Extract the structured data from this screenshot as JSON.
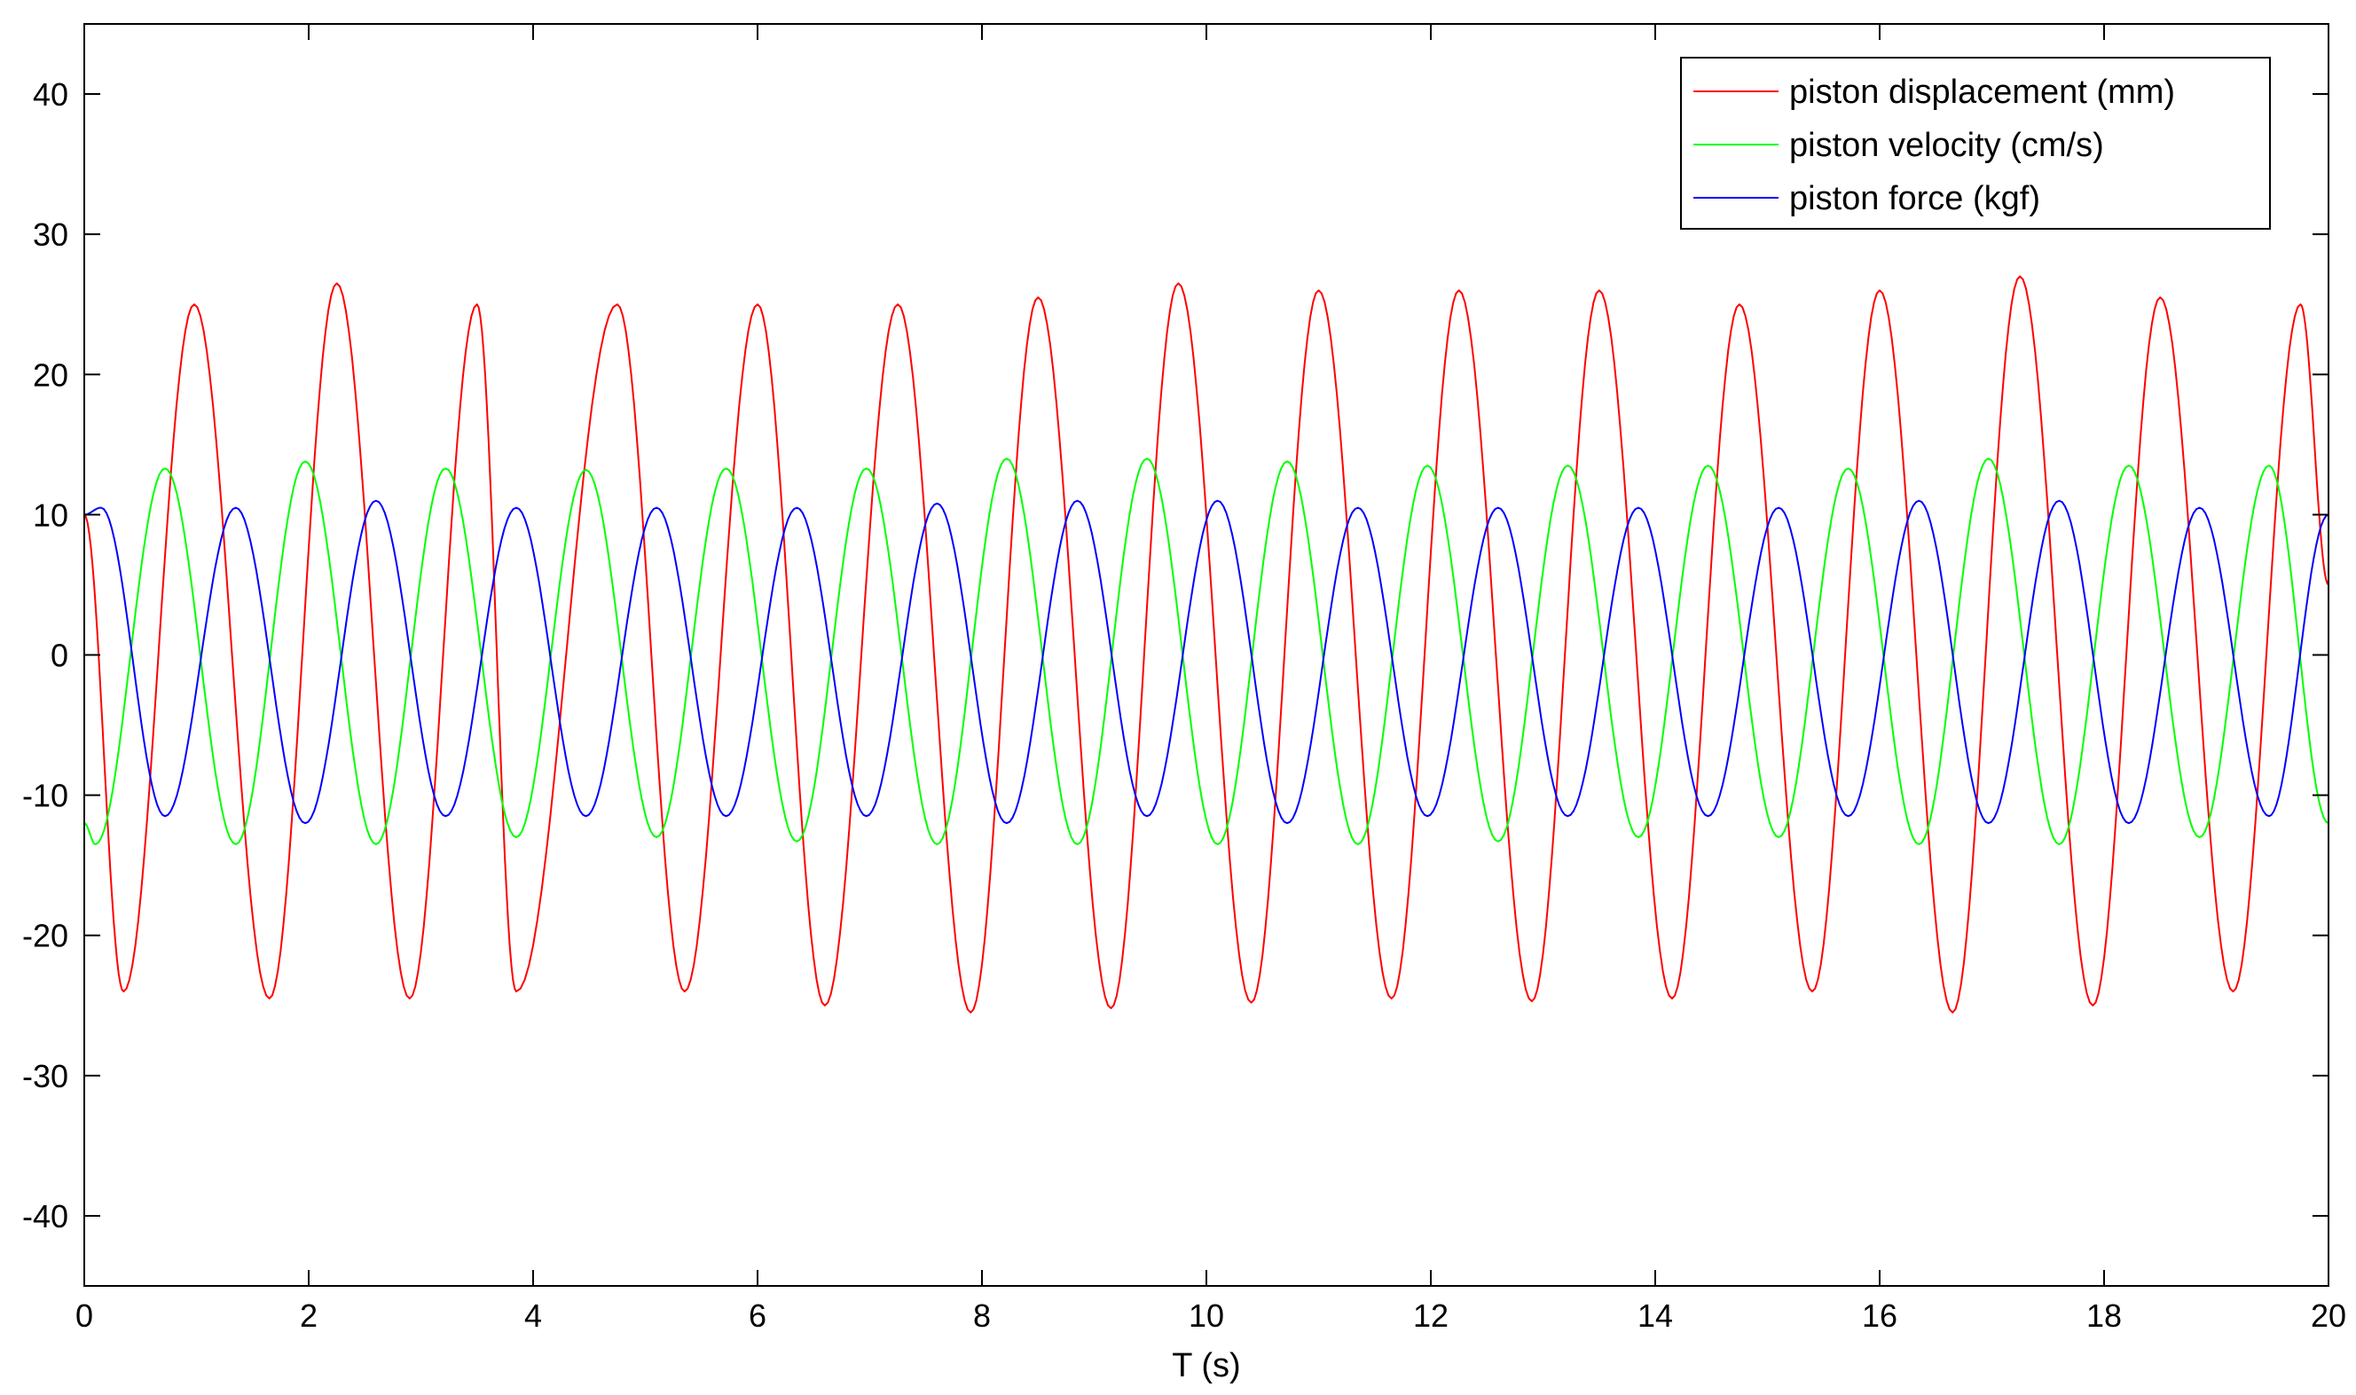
{
  "chart_data": {
    "type": "line",
    "title": "",
    "xlabel": "T (s)",
    "ylabel": "",
    "xlim": [
      0,
      20
    ],
    "ylim": [
      -45,
      45
    ],
    "xticks": [
      0,
      2,
      4,
      6,
      8,
      10,
      12,
      14,
      16,
      18,
      20
    ],
    "yticks": [
      -40,
      -30,
      -20,
      -10,
      0,
      10,
      20,
      30,
      40
    ],
    "grid": false,
    "legend_position": "top-right",
    "series": [
      {
        "name": "piston displacement (mm)",
        "color": "#ff0000",
        "description": "sinusoid, period ~1.25 s",
        "x": [
          0.0,
          0.35,
          0.98,
          1.65,
          2.25,
          2.9,
          3.5,
          3.85,
          4.75,
          5.35,
          6.0,
          6.6,
          7.25,
          7.9,
          8.5,
          9.15,
          9.75,
          10.4,
          11.0,
          11.65,
          12.25,
          12.9,
          13.5,
          14.15,
          14.75,
          15.4,
          16.0,
          16.65,
          17.25,
          17.9,
          18.5,
          19.15,
          19.75,
          20.0
        ],
        "y": [
          10,
          -24,
          25,
          -24.5,
          26.5,
          -24.5,
          25,
          -24,
          25,
          -24,
          25,
          -25,
          25,
          -25.5,
          25.5,
          -25.2,
          26.5,
          -24.8,
          26,
          -24.5,
          26,
          -24.7,
          26,
          -24.5,
          25,
          -24,
          26,
          -25.5,
          27,
          -25,
          25.5,
          -24,
          25,
          5
        ]
      },
      {
        "name": "piston velocity (cm/s)",
        "color": "#00ff00",
        "description": "sinusoid, period ~1.25 s",
        "x": [
          0.0,
          0.1,
          0.72,
          1.35,
          1.97,
          2.6,
          3.22,
          3.85,
          4.47,
          5.1,
          5.72,
          6.35,
          6.97,
          7.6,
          8.22,
          8.85,
          9.47,
          10.1,
          10.72,
          11.35,
          11.97,
          12.6,
          13.22,
          13.85,
          14.47,
          15.1,
          15.72,
          16.35,
          16.97,
          17.6,
          18.22,
          18.85,
          19.47,
          20.0
        ],
        "y": [
          -12,
          -13.5,
          13.3,
          -13.5,
          13.8,
          -13.5,
          13.3,
          -13,
          13.2,
          -13,
          13.3,
          -13.3,
          13.3,
          -13.5,
          14,
          -13.5,
          14,
          -13.5,
          13.8,
          -13.5,
          13.5,
          -13.3,
          13.5,
          -13,
          13.5,
          -13,
          13.3,
          -13.5,
          14,
          -13.5,
          13.5,
          -13,
          13.5,
          -12
        ]
      },
      {
        "name": "piston force (kgf)",
        "color": "#0000ff",
        "description": "sinusoid, period ~1.25 s",
        "x": [
          0.0,
          0.15,
          0.72,
          1.35,
          1.97,
          2.6,
          3.22,
          3.85,
          4.47,
          5.1,
          5.72,
          6.35,
          6.97,
          7.6,
          8.22,
          8.85,
          9.47,
          10.1,
          10.72,
          11.35,
          11.97,
          12.6,
          13.22,
          13.85,
          14.47,
          15.1,
          15.72,
          16.35,
          16.97,
          17.6,
          18.22,
          18.85,
          19.47,
          20.0
        ],
        "y": [
          10,
          10.5,
          -11.5,
          10.5,
          -12,
          11,
          -11.5,
          10.5,
          -11.5,
          10.5,
          -11.5,
          10.5,
          -11.5,
          10.8,
          -12,
          11,
          -11.5,
          11,
          -12,
          10.5,
          -11.5,
          10.5,
          -11.5,
          10.5,
          -11.5,
          10.5,
          -11.5,
          11,
          -12,
          11,
          -12,
          10.5,
          -11.5,
          10
        ]
      }
    ]
  }
}
